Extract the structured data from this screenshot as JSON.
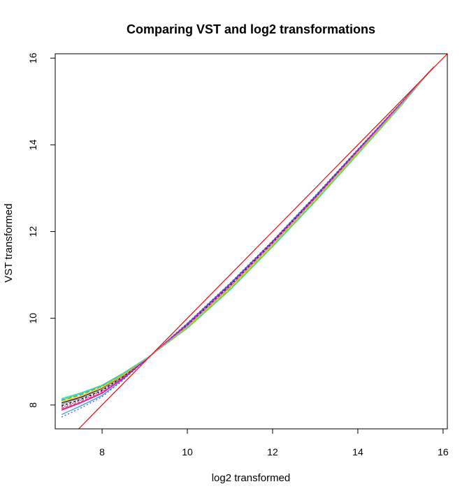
{
  "chart_data": {
    "type": "line",
    "title": "Comparing VST and log2 transformations",
    "xlabel": "log2 transformed",
    "ylabel": "VST transformed",
    "xlim": [
      6.9,
      16.1
    ],
    "ylim": [
      7.45,
      16.1
    ],
    "xticks": [
      8,
      10,
      12,
      14,
      16
    ],
    "yticks": [
      8,
      10,
      12,
      14,
      16
    ],
    "grid": false,
    "legend": "none",
    "series": [
      {
        "color": "#000000",
        "dash": "",
        "points": [
          [
            7.05,
            8.05
          ],
          [
            7.5,
            8.18
          ],
          [
            8.0,
            8.38
          ],
          [
            8.5,
            8.68
          ],
          [
            9.15,
            9.15
          ],
          [
            10.0,
            9.82
          ],
          [
            11.0,
            10.72
          ],
          [
            12.0,
            11.72
          ],
          [
            13.0,
            12.76
          ],
          [
            14.0,
            13.84
          ],
          [
            15.0,
            14.92
          ],
          [
            15.78,
            15.8
          ]
        ]
      },
      {
        "color": "#df536b",
        "dash": "4,2",
        "points": [
          [
            7.05,
            7.92
          ],
          [
            7.5,
            8.08
          ],
          [
            8.0,
            8.3
          ],
          [
            8.5,
            8.64
          ],
          [
            9.15,
            9.15
          ],
          [
            10.0,
            9.86
          ],
          [
            11.0,
            10.78
          ],
          [
            12.0,
            11.76
          ],
          [
            13.0,
            12.8
          ],
          [
            14.0,
            13.88
          ],
          [
            15.0,
            14.94
          ],
          [
            15.78,
            15.8
          ]
        ]
      },
      {
        "color": "#61d04f",
        "dash": "",
        "points": [
          [
            7.05,
            8.12
          ],
          [
            7.5,
            8.26
          ],
          [
            8.0,
            8.44
          ],
          [
            8.5,
            8.72
          ],
          [
            9.15,
            9.15
          ],
          [
            10.0,
            9.78
          ],
          [
            11.0,
            10.66
          ],
          [
            12.0,
            11.66
          ],
          [
            13.0,
            12.7
          ],
          [
            14.0,
            13.79
          ],
          [
            15.0,
            14.89
          ],
          [
            15.78,
            15.8
          ]
        ]
      },
      {
        "color": "#2297e6",
        "dash": "6,3",
        "points": [
          [
            7.05,
            8.1
          ],
          [
            7.5,
            8.24
          ],
          [
            8.0,
            8.43
          ],
          [
            8.5,
            8.71
          ],
          [
            9.15,
            9.15
          ],
          [
            10.0,
            9.79
          ],
          [
            11.0,
            10.68
          ],
          [
            12.0,
            11.68
          ],
          [
            13.0,
            12.72
          ],
          [
            14.0,
            13.8
          ],
          [
            15.0,
            14.9
          ],
          [
            15.78,
            15.8
          ]
        ]
      },
      {
        "color": "#28e2e5",
        "dash": "",
        "points": [
          [
            7.05,
            8.15
          ],
          [
            7.5,
            8.28
          ],
          [
            8.0,
            8.46
          ],
          [
            8.5,
            8.74
          ],
          [
            9.15,
            9.15
          ],
          [
            10.0,
            9.77
          ],
          [
            11.0,
            10.65
          ],
          [
            12.0,
            11.65
          ],
          [
            13.0,
            12.69
          ],
          [
            14.0,
            13.78
          ],
          [
            15.0,
            14.88
          ],
          [
            15.78,
            15.8
          ]
        ]
      },
      {
        "color": "#cd0bbc",
        "dash": "2,2",
        "points": [
          [
            7.05,
            7.95
          ],
          [
            7.5,
            8.11
          ],
          [
            8.0,
            8.32
          ],
          [
            8.5,
            8.65
          ],
          [
            9.15,
            9.15
          ],
          [
            10.0,
            9.85
          ],
          [
            11.0,
            10.77
          ],
          [
            12.0,
            11.76
          ],
          [
            13.0,
            12.79
          ],
          [
            14.0,
            13.87
          ],
          [
            15.0,
            14.94
          ],
          [
            15.78,
            15.8
          ]
        ]
      },
      {
        "color": "#f5c710",
        "dash": "",
        "points": [
          [
            7.05,
            8.08
          ],
          [
            7.5,
            8.21
          ],
          [
            8.0,
            8.41
          ],
          [
            8.5,
            8.7
          ],
          [
            9.15,
            9.15
          ],
          [
            10.0,
            9.8
          ],
          [
            11.0,
            10.7
          ],
          [
            12.0,
            11.7
          ],
          [
            13.0,
            12.74
          ],
          [
            14.0,
            13.82
          ],
          [
            15.0,
            14.91
          ],
          [
            15.78,
            15.8
          ]
        ]
      },
      {
        "color": "#9e9e9e",
        "dash": "5,2,1,2",
        "points": [
          [
            7.05,
            8.0
          ],
          [
            7.5,
            8.15
          ],
          [
            8.0,
            8.36
          ],
          [
            8.5,
            8.67
          ],
          [
            9.15,
            9.15
          ],
          [
            10.0,
            9.83
          ],
          [
            11.0,
            10.74
          ],
          [
            12.0,
            11.73
          ],
          [
            13.0,
            12.77
          ],
          [
            14.0,
            13.85
          ],
          [
            15.0,
            14.93
          ],
          [
            15.78,
            15.8
          ]
        ]
      },
      {
        "color": "#000000",
        "dash": "3,3",
        "points": [
          [
            7.05,
            7.98
          ],
          [
            7.5,
            8.13
          ],
          [
            8.0,
            8.34
          ],
          [
            8.5,
            8.66
          ],
          [
            9.15,
            9.15
          ],
          [
            10.0,
            9.84
          ],
          [
            11.0,
            10.75
          ],
          [
            12.0,
            11.74
          ],
          [
            13.0,
            12.78
          ],
          [
            14.0,
            13.86
          ],
          [
            15.0,
            14.93
          ],
          [
            15.78,
            15.8
          ]
        ]
      },
      {
        "color": "#df536b",
        "dash": "",
        "points": [
          [
            7.05,
            7.9
          ],
          [
            7.5,
            8.06
          ],
          [
            8.0,
            8.28
          ],
          [
            8.5,
            8.63
          ],
          [
            9.15,
            9.15
          ],
          [
            10.0,
            9.87
          ],
          [
            11.0,
            10.79
          ],
          [
            12.0,
            11.77
          ],
          [
            13.0,
            12.81
          ],
          [
            14.0,
            13.88
          ],
          [
            15.0,
            14.95
          ],
          [
            15.78,
            15.8
          ]
        ]
      },
      {
        "color": "#61d04f",
        "dash": "4,2",
        "points": [
          [
            7.05,
            8.13
          ],
          [
            7.5,
            8.27
          ],
          [
            8.0,
            8.45
          ],
          [
            8.5,
            8.73
          ],
          [
            9.15,
            9.15
          ],
          [
            10.0,
            9.77
          ],
          [
            11.0,
            10.66
          ],
          [
            12.0,
            11.66
          ],
          [
            13.0,
            12.7
          ],
          [
            14.0,
            13.79
          ],
          [
            15.0,
            14.89
          ],
          [
            15.78,
            15.8
          ]
        ]
      },
      {
        "color": "#2297e6",
        "dash": "",
        "points": [
          [
            7.05,
            7.78
          ],
          [
            7.5,
            7.98
          ],
          [
            8.0,
            8.22
          ],
          [
            8.5,
            8.6
          ],
          [
            9.15,
            9.15
          ],
          [
            10.0,
            9.88
          ],
          [
            11.0,
            10.8
          ],
          [
            12.0,
            11.78
          ],
          [
            13.0,
            12.82
          ],
          [
            14.0,
            13.89
          ],
          [
            15.0,
            14.95
          ],
          [
            15.78,
            15.8
          ]
        ]
      },
      {
        "color": "#cd0bbc",
        "dash": "",
        "points": [
          [
            7.05,
            7.88
          ],
          [
            7.5,
            8.05
          ],
          [
            8.0,
            8.27
          ],
          [
            8.5,
            8.62
          ],
          [
            9.15,
            9.15
          ],
          [
            10.0,
            9.86
          ],
          [
            11.0,
            10.78
          ],
          [
            12.0,
            11.77
          ],
          [
            13.0,
            12.8
          ],
          [
            14.0,
            13.88
          ],
          [
            15.0,
            14.94
          ],
          [
            15.78,
            15.8
          ]
        ]
      },
      {
        "color": "#5b3fc9",
        "dash": "2,3",
        "points": [
          [
            7.05,
            7.72
          ],
          [
            7.5,
            7.93
          ],
          [
            8.0,
            8.19
          ],
          [
            8.5,
            8.58
          ],
          [
            9.15,
            9.15
          ],
          [
            10.0,
            9.89
          ],
          [
            11.0,
            10.81
          ],
          [
            12.0,
            11.79
          ],
          [
            13.0,
            12.83
          ],
          [
            14.0,
            13.9
          ],
          [
            15.0,
            14.96
          ],
          [
            15.78,
            15.8
          ]
        ]
      },
      {
        "color": "#f5c710",
        "dash": "6,3",
        "points": [
          [
            7.05,
            8.09
          ],
          [
            7.5,
            8.22
          ],
          [
            8.0,
            8.42
          ],
          [
            8.5,
            8.7
          ],
          [
            9.15,
            9.15
          ],
          [
            10.0,
            9.8
          ],
          [
            11.0,
            10.69
          ],
          [
            12.0,
            11.69
          ],
          [
            13.0,
            12.73
          ],
          [
            14.0,
            13.81
          ],
          [
            15.0,
            14.9
          ],
          [
            15.78,
            15.8
          ]
        ]
      },
      {
        "color": "#9e9e9e",
        "dash": "",
        "points": [
          [
            7.05,
            8.02
          ],
          [
            7.5,
            8.16
          ],
          [
            8.0,
            8.37
          ],
          [
            8.5,
            8.68
          ],
          [
            9.15,
            9.15
          ],
          [
            10.0,
            9.82
          ],
          [
            11.0,
            10.73
          ],
          [
            12.0,
            11.72
          ],
          [
            13.0,
            12.76
          ],
          [
            14.0,
            13.84
          ],
          [
            15.0,
            14.92
          ],
          [
            15.78,
            15.8
          ]
        ]
      }
    ],
    "reference_line": {
      "color": "#ff0000",
      "slope": 1,
      "intercept": 0
    }
  }
}
